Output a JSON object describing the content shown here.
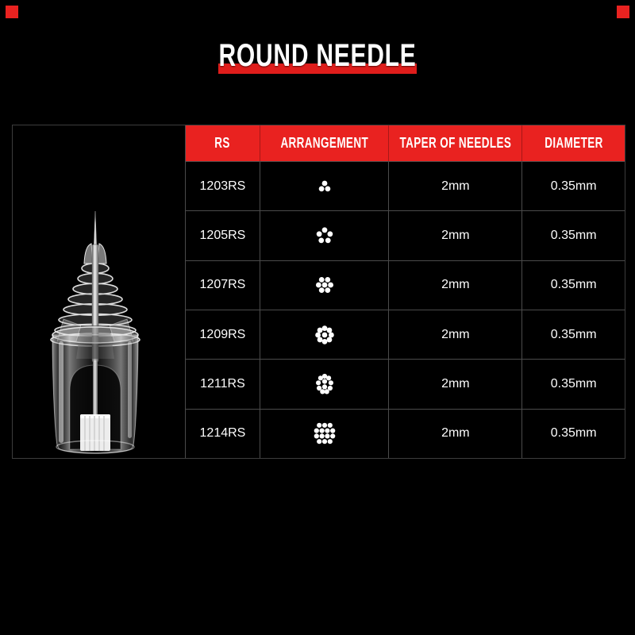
{
  "title": "ROUND NEEDLE",
  "colors": {
    "accent_red": "#e92220",
    "title_bar_red": "#df1d1b",
    "grid_line": "#4b4b4b",
    "panel_border": "#3c3c3c",
    "text": "#ffffff",
    "background": "#000000"
  },
  "table": {
    "headers": [
      "RS",
      "ARRANGEMENT",
      "TAPER OF NEEDLES",
      "DIAMETER"
    ],
    "rows": [
      {
        "rs": "1203RS",
        "needles": 3,
        "taper": "2mm",
        "diameter": "0.35mm"
      },
      {
        "rs": "1205RS",
        "needles": 5,
        "taper": "2mm",
        "diameter": "0.35mm"
      },
      {
        "rs": "1207RS",
        "needles": 7,
        "taper": "2mm",
        "diameter": "0.35mm"
      },
      {
        "rs": "1209RS",
        "needles": 9,
        "taper": "2mm",
        "diameter": "0.35mm"
      },
      {
        "rs": "1211RS",
        "needles": 11,
        "taper": "2mm",
        "diameter": "0.35mm"
      },
      {
        "rs": "1214RS",
        "needles": 14,
        "taper": "2mm",
        "diameter": "0.35mm"
      }
    ]
  }
}
